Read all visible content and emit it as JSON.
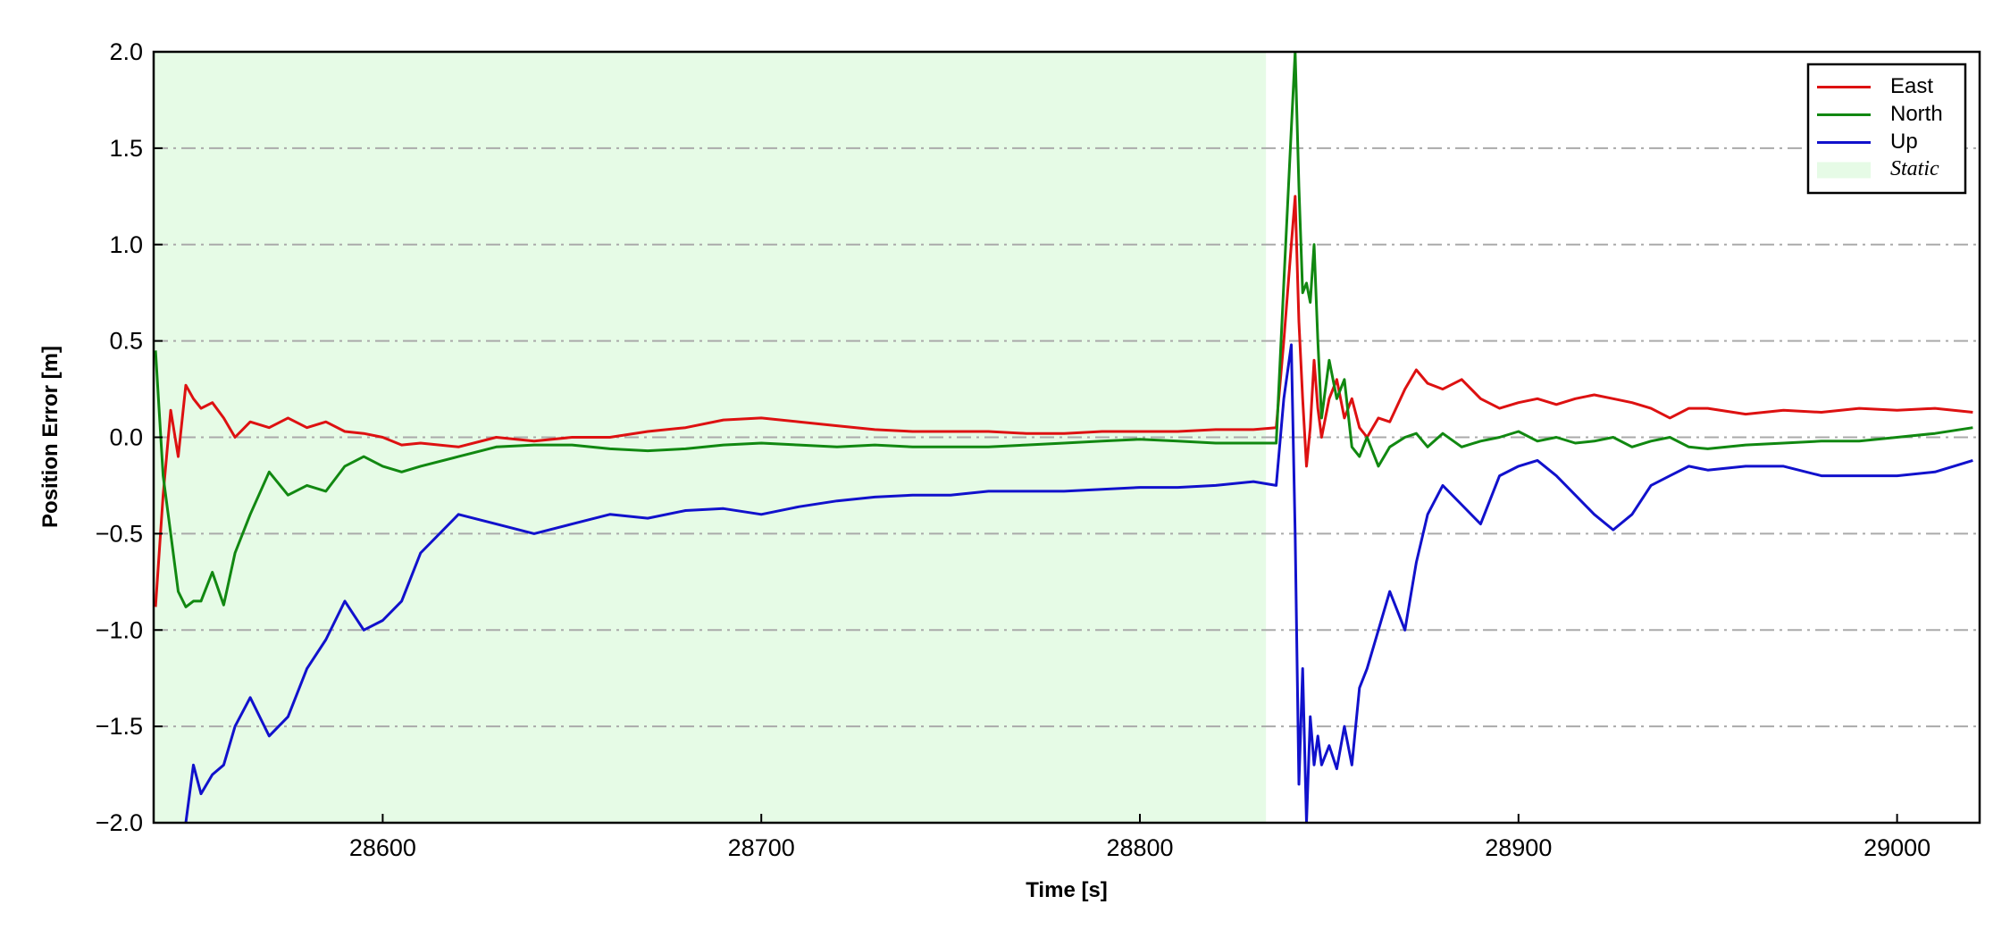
{
  "chart_data": {
    "type": "line",
    "xlabel": "Time [s]",
    "ylabel": "Position Error [m]",
    "xlim": [
      28539.5,
      29021.8
    ],
    "ylim": [
      -2.0,
      2.0
    ],
    "xticks": [
      28600,
      28700,
      28800,
      28900,
      29000
    ],
    "yticks": [
      {
        "value": -2.0,
        "label": "−2.0"
      },
      {
        "value": -1.5,
        "label": "−1.5"
      },
      {
        "value": -1.0,
        "label": "−1.0"
      },
      {
        "value": -0.5,
        "label": "−0.5"
      },
      {
        "value": 0.0,
        "label": "0.0"
      },
      {
        "value": 0.5,
        "label": "0.5"
      },
      {
        "value": 1.0,
        "label": "1.0"
      },
      {
        "value": 1.5,
        "label": "1.5"
      },
      {
        "value": 2.0,
        "label": "2.0"
      }
    ],
    "grid": "y",
    "legend": "upper right",
    "spans": [
      {
        "name": "Static",
        "x": [
          28539.5,
          28833.3
        ],
        "color": "#e6fbe6"
      }
    ],
    "x": [
      28540,
      28542,
      28544,
      28546,
      28548,
      28550,
      28552,
      28555,
      28558,
      28561,
      28565,
      28570,
      28575,
      28580,
      28585,
      28590,
      28595,
      28600,
      28605,
      28610,
      28620,
      28630,
      28640,
      28650,
      28660,
      28670,
      28680,
      28690,
      28700,
      28710,
      28720,
      28730,
      28740,
      28750,
      28760,
      28770,
      28780,
      28790,
      28800,
      28810,
      28820,
      28830,
      28836,
      28838,
      28840,
      28841,
      28842,
      28843,
      28844,
      28845,
      28846,
      28847,
      28848,
      28850,
      28852,
      28854,
      28856,
      28858,
      28860,
      28863,
      28866,
      28870,
      28873,
      28876,
      28880,
      28885,
      28890,
      28895,
      28900,
      28905,
      28910,
      28915,
      28920,
      28925,
      28930,
      28935,
      28940,
      28945,
      28950,
      28960,
      28970,
      28980,
      28990,
      29000,
      29010,
      29020
    ],
    "series": [
      {
        "name": "East",
        "color": "#dd1111",
        "values": [
          -0.88,
          -0.3,
          0.14,
          -0.1,
          0.27,
          0.2,
          0.15,
          0.18,
          0.1,
          0.0,
          0.08,
          0.05,
          0.1,
          0.05,
          0.08,
          0.03,
          0.02,
          0.0,
          -0.04,
          -0.03,
          -0.05,
          0.0,
          -0.02,
          0.0,
          0.0,
          0.03,
          0.05,
          0.09,
          0.1,
          0.08,
          0.06,
          0.04,
          0.03,
          0.03,
          0.03,
          0.02,
          0.02,
          0.03,
          0.03,
          0.03,
          0.04,
          0.04,
          0.05,
          0.5,
          1.0,
          1.25,
          0.6,
          0.2,
          -0.15,
          0.05,
          0.4,
          0.15,
          0.0,
          0.2,
          0.3,
          0.1,
          0.2,
          0.05,
          0.0,
          0.1,
          0.08,
          0.25,
          0.35,
          0.28,
          0.25,
          0.3,
          0.2,
          0.15,
          0.18,
          0.2,
          0.17,
          0.2,
          0.22,
          0.2,
          0.18,
          0.15,
          0.1,
          0.15,
          0.15,
          0.12,
          0.14,
          0.13,
          0.15,
          0.14,
          0.15,
          0.13
        ]
      },
      {
        "name": "North",
        "color": "#118811",
        "values": [
          0.45,
          -0.2,
          -0.5,
          -0.8,
          -0.88,
          -0.85,
          -0.85,
          -0.7,
          -0.87,
          -0.6,
          -0.4,
          -0.18,
          -0.3,
          -0.25,
          -0.28,
          -0.15,
          -0.1,
          -0.15,
          -0.18,
          -0.15,
          -0.1,
          -0.05,
          -0.04,
          -0.04,
          -0.06,
          -0.07,
          -0.06,
          -0.04,
          -0.03,
          -0.04,
          -0.05,
          -0.04,
          -0.05,
          -0.05,
          -0.05,
          -0.04,
          -0.03,
          -0.02,
          -0.01,
          -0.02,
          -0.03,
          -0.03,
          -0.03,
          0.8,
          1.6,
          2.0,
          1.3,
          0.75,
          0.8,
          0.7,
          1.0,
          0.5,
          0.1,
          0.4,
          0.2,
          0.3,
          -0.05,
          -0.1,
          0.0,
          -0.15,
          -0.05,
          0.0,
          0.02,
          -0.05,
          0.02,
          -0.05,
          -0.02,
          0.0,
          0.03,
          -0.02,
          0.0,
          -0.03,
          -0.02,
          0.0,
          -0.05,
          -0.02,
          0.0,
          -0.05,
          -0.06,
          -0.04,
          -0.03,
          -0.02,
          -0.02,
          0.0,
          0.02,
          0.05
        ]
      },
      {
        "name": "Up",
        "color": "#1111cc",
        "values": [
          null,
          null,
          null,
          null,
          -2.0,
          -1.7,
          -1.85,
          -1.75,
          -1.7,
          -1.5,
          -1.35,
          -1.55,
          -1.45,
          -1.2,
          -1.05,
          -0.85,
          -1.0,
          -0.95,
          -0.85,
          -0.6,
          -0.4,
          -0.45,
          -0.5,
          -0.45,
          -0.4,
          -0.42,
          -0.38,
          -0.37,
          -0.4,
          -0.36,
          -0.33,
          -0.31,
          -0.3,
          -0.3,
          -0.28,
          -0.28,
          -0.28,
          -0.27,
          -0.26,
          -0.26,
          -0.25,
          -0.23,
          -0.25,
          0.2,
          0.48,
          -0.5,
          -1.8,
          -1.2,
          -2.0,
          -1.45,
          -1.7,
          -1.55,
          -1.7,
          -1.6,
          -1.72,
          -1.5,
          -1.7,
          -1.3,
          -1.2,
          -1.0,
          -0.8,
          -1.0,
          -0.65,
          -0.4,
          -0.25,
          -0.35,
          -0.45,
          -0.2,
          -0.15,
          -0.12,
          -0.2,
          -0.3,
          -0.4,
          -0.48,
          -0.4,
          -0.25,
          -0.2,
          -0.15,
          -0.17,
          -0.15,
          -0.15,
          -0.2,
          -0.2,
          -0.2,
          -0.18,
          -0.12
        ]
      }
    ]
  }
}
